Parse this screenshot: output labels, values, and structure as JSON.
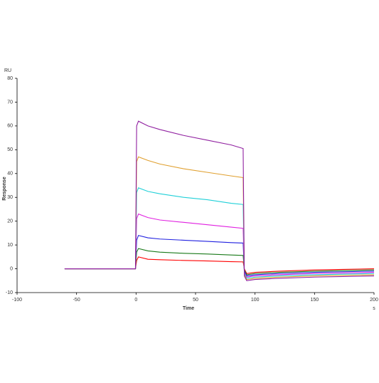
{
  "chart_data": {
    "type": "line",
    "y_unit": "RU",
    "y_label": "Response",
    "x_label": "Time",
    "x_unit": "s",
    "x": [
      -60,
      -0.5,
      0.5,
      2,
      10,
      20,
      40,
      60,
      80,
      90,
      91,
      93,
      100,
      120,
      150,
      200
    ],
    "series": [
      {
        "color": "#ff0000",
        "values": [
          0,
          0,
          3.5,
          5,
          4,
          3.8,
          3.5,
          3.3,
          3,
          2.9,
          0,
          -2,
          -1.5,
          -1,
          -0.5,
          0
        ]
      },
      {
        "color": "#1a7a1a",
        "values": [
          0,
          0,
          7,
          8.5,
          7.5,
          7,
          6.5,
          6.2,
          5.8,
          5.6,
          -0.5,
          -2.5,
          -2,
          -1.5,
          -1,
          -0.5
        ]
      },
      {
        "color": "#2020e0",
        "values": [
          0,
          0,
          12,
          14,
          13,
          12.5,
          12,
          11.5,
          11,
          10.8,
          -1,
          -3,
          -2.5,
          -2,
          -1.5,
          -1
        ]
      },
      {
        "color": "#e020e0",
        "values": [
          0,
          0,
          21,
          23,
          21.5,
          20.5,
          19.5,
          18.5,
          17.5,
          17,
          -1.5,
          -3.5,
          -3,
          -2.5,
          -2,
          -1.5
        ]
      },
      {
        "color": "#20d0d8",
        "values": [
          0,
          0,
          32,
          34,
          32.5,
          31.5,
          30,
          29,
          27.5,
          27,
          -2,
          -4,
          -3.5,
          -3,
          -2.5,
          -2
        ]
      },
      {
        "color": "#e0a030",
        "values": [
          0,
          0,
          45,
          47,
          45.5,
          44,
          42,
          40.5,
          39,
          38.3,
          -2.5,
          -4.5,
          -4,
          -3.5,
          -3,
          -2.5
        ]
      },
      {
        "color": "#9020a0",
        "values": [
          0,
          0,
          60,
          62,
          60,
          58.5,
          56,
          54,
          52,
          50.5,
          -3,
          -5,
          -4.5,
          -4,
          -3.5,
          -3
        ]
      }
    ],
    "xlim": [
      -100,
      200
    ],
    "xticks": [
      -100,
      -50,
      0,
      50,
      100,
      150,
      200
    ],
    "ylim": [
      -10,
      80
    ],
    "yticks": [
      -10,
      0,
      10,
      20,
      30,
      40,
      50,
      60,
      70,
      80
    ]
  }
}
